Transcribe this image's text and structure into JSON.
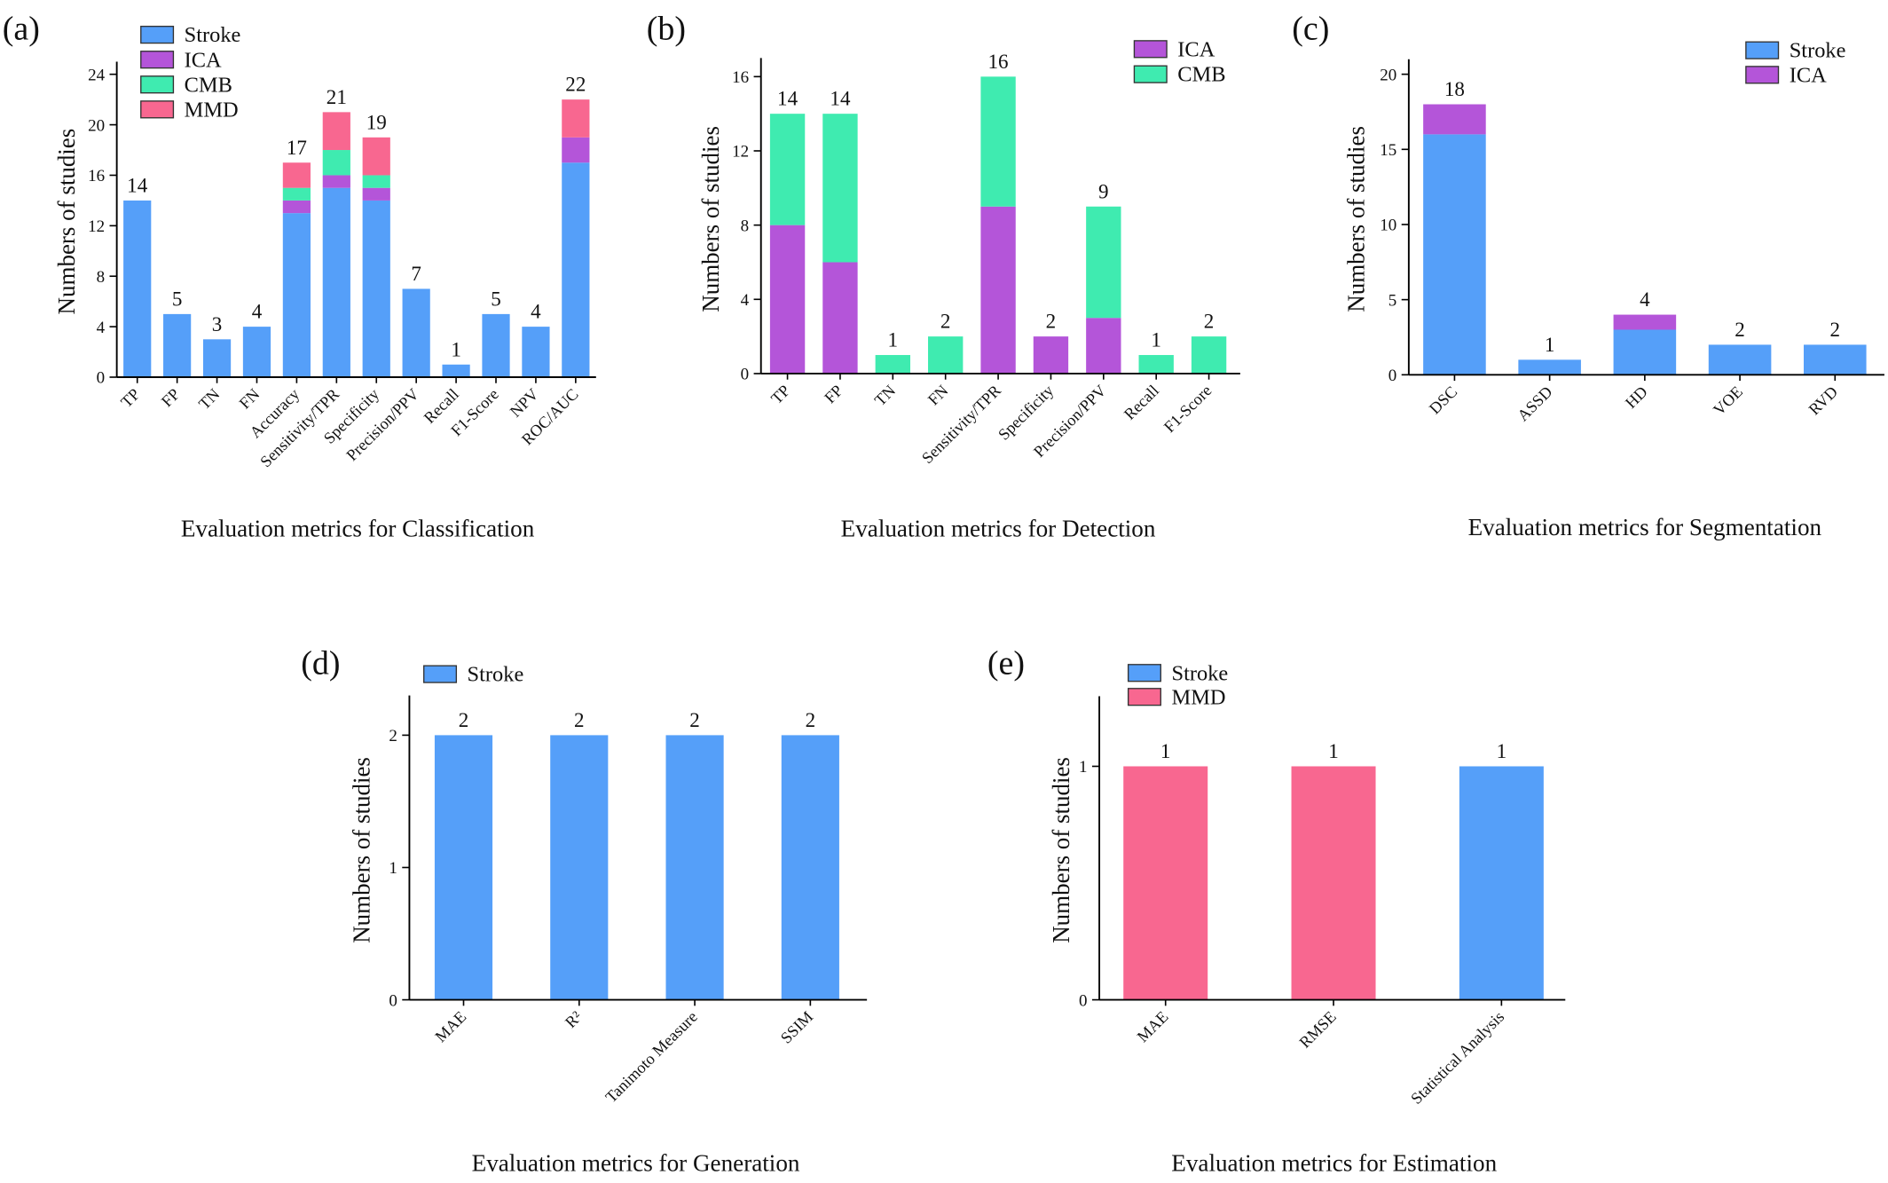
{
  "colors": {
    "Stroke": "#559FF9",
    "ICA": "#B455D9",
    "CMB": "#3FEBB0",
    "MMD": "#F86790",
    "axis": "#000000"
  },
  "chart_data": [
    {
      "panel_label": "(a)",
      "type": "bar",
      "stacked": true,
      "xlabel": "Evaluation metrics for Classification",
      "ylabel": "Numbers of studies",
      "ylim": [
        0,
        25
      ],
      "yticks": [
        0,
        4,
        8,
        12,
        16,
        20,
        24
      ],
      "grid": false,
      "legend": [
        "Stroke",
        "ICA",
        "CMB",
        "MMD"
      ],
      "legend_position": "top-left",
      "categories": [
        "TP",
        "FP",
        "TN",
        "FN",
        "Accuracy",
        "Sensitivity/TPR",
        "Specificity",
        "Precision/PPV",
        "Recall",
        "F1-Score",
        "NPV",
        "ROC/AUC"
      ],
      "series": [
        {
          "name": "Stroke",
          "values": [
            14,
            5,
            3,
            4,
            13,
            15,
            14,
            7,
            1,
            5,
            4,
            17
          ]
        },
        {
          "name": "ICA",
          "values": [
            0,
            0,
            0,
            0,
            1,
            1,
            1,
            0,
            0,
            0,
            0,
            2
          ]
        },
        {
          "name": "CMB",
          "values": [
            0,
            0,
            0,
            0,
            1,
            2,
            1,
            0,
            0,
            0,
            0,
            0
          ]
        },
        {
          "name": "MMD",
          "values": [
            0,
            0,
            0,
            0,
            2,
            3,
            3,
            0,
            0,
            0,
            0,
            3
          ]
        }
      ],
      "data_labels": [
        "14",
        "5",
        "3",
        "4",
        "17",
        "21",
        "19",
        "7",
        "1",
        "5",
        "4",
        "22"
      ]
    },
    {
      "panel_label": "(b)",
      "type": "bar",
      "stacked": true,
      "xlabel": "Evaluation metrics for Detection",
      "ylabel": "Numbers of studies",
      "ylim": [
        0,
        17
      ],
      "yticks": [
        0,
        4,
        8,
        12,
        16
      ],
      "grid": false,
      "legend": [
        "ICA",
        "CMB"
      ],
      "legend_position": "top-right",
      "categories": [
        "TP",
        "FP",
        "TN",
        "FN",
        "Sensitivity/TPR",
        "Specificity",
        "Precision/PPV",
        "Recall",
        "F1-Score"
      ],
      "series": [
        {
          "name": "ICA",
          "values": [
            8,
            6,
            0,
            0,
            9,
            2,
            3,
            0,
            0
          ]
        },
        {
          "name": "CMB",
          "values": [
            6,
            8,
            1,
            2,
            7,
            0,
            6,
            1,
            2
          ]
        }
      ],
      "data_labels": [
        "14",
        "14",
        "1",
        "2",
        "16",
        "2",
        "9",
        "1",
        "2"
      ]
    },
    {
      "panel_label": "(c)",
      "type": "bar",
      "stacked": true,
      "xlabel": "Evaluation metrics for Segmentation",
      "ylabel": "Numbers of studies",
      "ylim": [
        0,
        21
      ],
      "yticks": [
        0,
        5,
        10,
        15,
        20
      ],
      "grid": false,
      "legend": [
        "Stroke",
        "ICA"
      ],
      "legend_position": "top-right",
      "categories": [
        "DSC",
        "ASSD",
        "HD",
        "VOE",
        "RVD"
      ],
      "series": [
        {
          "name": "Stroke",
          "values": [
            16,
            1,
            3,
            2,
            2
          ]
        },
        {
          "name": "ICA",
          "values": [
            2,
            0,
            1,
            0,
            0
          ]
        }
      ],
      "data_labels": [
        "18",
        "1",
        "4",
        "2",
        "2"
      ]
    },
    {
      "panel_label": "(d)",
      "type": "bar",
      "stacked": true,
      "xlabel": "Evaluation metrics for Generation",
      "ylabel": "Numbers of studies",
      "ylim": [
        0,
        2.3
      ],
      "yticks": [
        0,
        1,
        2
      ],
      "grid": false,
      "legend": [
        "Stroke"
      ],
      "legend_position": "top-left",
      "categories": [
        "MAE",
        "R²",
        "Tanimoto Measure",
        "SSIM"
      ],
      "series": [
        {
          "name": "Stroke",
          "values": [
            2,
            2,
            2,
            2
          ]
        }
      ],
      "data_labels": [
        "2",
        "2",
        "2",
        "2"
      ]
    },
    {
      "panel_label": "(e)",
      "type": "bar",
      "stacked": true,
      "xlabel": "Evaluation metrics for Estimation",
      "ylabel": "Numbers of studies",
      "ylim": [
        0,
        1.3
      ],
      "yticks": [
        0,
        1
      ],
      "grid": false,
      "legend": [
        "Stroke",
        "MMD"
      ],
      "legend_position": "top-left",
      "categories": [
        "MAE",
        "RMSE",
        "Statistical Analysis"
      ],
      "series": [
        {
          "name": "Stroke",
          "values": [
            0,
            0,
            1
          ]
        },
        {
          "name": "MMD",
          "values": [
            1,
            1,
            0
          ]
        }
      ],
      "data_labels": [
        "1",
        "1",
        "1"
      ]
    }
  ]
}
